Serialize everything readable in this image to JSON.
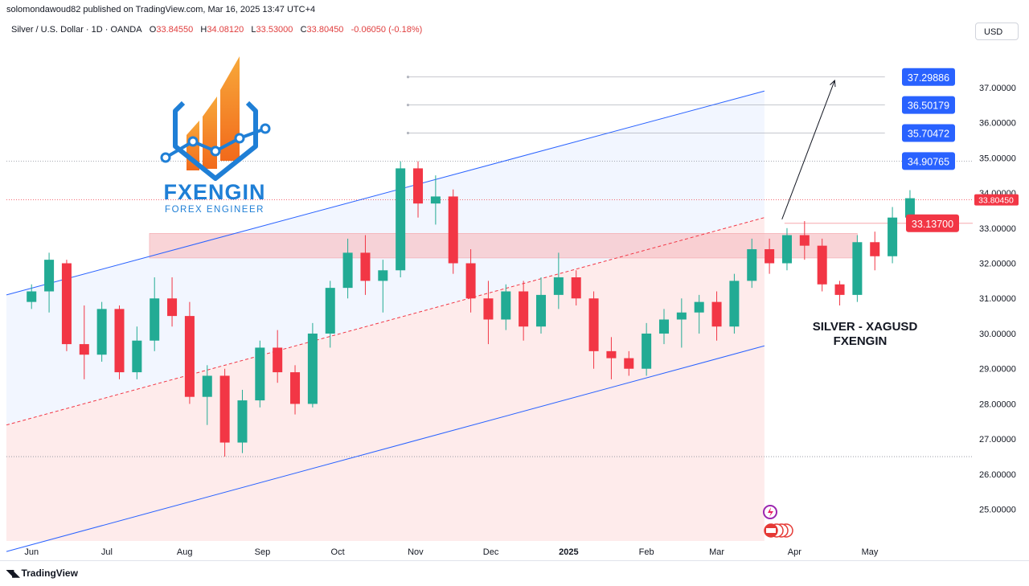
{
  "header": {
    "published": "solomondawoud82 published on TradingView.com, Mar 16, 2025 13:47 UTC+4"
  },
  "legend": {
    "symbol": "Silver / U.S. Dollar · 1D · OANDA",
    "o_label": "O",
    "o_value": "33.84550",
    "h_label": "H",
    "h_value": "34.08120",
    "l_label": "L",
    "l_value": "33.53000",
    "c_label": "C",
    "c_value": "33.80450",
    "change": "-0.06050 (-0.18%)"
  },
  "currency_button": "USD",
  "logo": {
    "name": "FXENGIN",
    "tagline": "FOREX ENGINEER"
  },
  "annotation": {
    "line1": "SILVER - XAGUSD",
    "line2": "FXENGIN"
  },
  "footer": {
    "brand": "TradingView",
    "icon": "tradingview-logo-icon"
  },
  "colors": {
    "up": "#22ab94",
    "down": "#f23645",
    "channel": "#2962ff",
    "target_label": "#2962ff",
    "current_label": "#f23645"
  },
  "chart_data": {
    "type": "candlestick",
    "symbol": "XAGUSD",
    "timeframe": "1D",
    "y_axis": {
      "ylim": [
        24.1,
        38.3
      ],
      "ticks": [
        "37.00000",
        "36.00000",
        "35.00000",
        "34.00000",
        "33.00000",
        "32.00000",
        "31.00000",
        "30.00000",
        "29.00000",
        "28.00000",
        "27.00000",
        "26.00000",
        "25.00000"
      ],
      "tick_values": [
        37,
        36,
        35,
        34,
        33,
        32,
        31,
        30,
        29,
        28,
        27,
        26,
        25
      ]
    },
    "x_axis": {
      "labels": [
        "Jun",
        "Jul",
        "Aug",
        "Sep",
        "Oct",
        "Nov",
        "Dec",
        "2025",
        "Feb",
        "Mar",
        "Apr",
        "May"
      ],
      "label_days": [
        0,
        30,
        61,
        92,
        122,
        153,
        183,
        214,
        245,
        273,
        304,
        334
      ],
      "xlim_days": [
        -10,
        375
      ]
    },
    "current_price": {
      "value": 33.8045,
      "label": "33.80450"
    },
    "level_labels": [
      {
        "value": 37.29886,
        "label": "37.29886"
      },
      {
        "value": 36.50179,
        "label": "36.50179"
      },
      {
        "value": 35.70472,
        "label": "35.70472"
      },
      {
        "value": 34.90765,
        "label": "34.90765"
      }
    ],
    "marked_level": {
      "value": 33.137,
      "label": "33.13700"
    },
    "horizontal_lines": [
      34.90765,
      26.5
    ],
    "support_zone": {
      "from": 32.15,
      "to": 32.85,
      "x_from_day": 47,
      "x_to_day": 329
    },
    "channel": {
      "upper": {
        "x": [
          -10,
          292
        ],
        "y": [
          31.1,
          36.9
        ]
      },
      "lower": {
        "x": [
          -10,
          292
        ],
        "y": [
          23.8,
          29.65
        ]
      },
      "mid": {
        "x": [
          -10,
          292
        ],
        "y": [
          27.4,
          33.3
        ]
      },
      "fill_end_day": 292
    },
    "projection_arrow": {
      "x": [
        299,
        320
      ],
      "y": [
        33.25,
        37.2
      ]
    },
    "candles": [
      {
        "d": 0,
        "o": 30.9,
        "h": 31.4,
        "l": 30.7,
        "c": 31.2
      },
      {
        "d": 7,
        "o": 31.2,
        "h": 32.3,
        "l": 30.6,
        "c": 32.1
      },
      {
        "d": 14,
        "o": 32.0,
        "h": 32.1,
        "l": 29.5,
        "c": 29.7
      },
      {
        "d": 21,
        "o": 29.7,
        "h": 30.8,
        "l": 28.7,
        "c": 29.4
      },
      {
        "d": 28,
        "o": 29.4,
        "h": 30.9,
        "l": 29.2,
        "c": 30.7
      },
      {
        "d": 35,
        "o": 30.7,
        "h": 30.8,
        "l": 28.7,
        "c": 28.9
      },
      {
        "d": 42,
        "o": 28.9,
        "h": 30.2,
        "l": 28.7,
        "c": 29.8
      },
      {
        "d": 49,
        "o": 29.8,
        "h": 31.6,
        "l": 29.5,
        "c": 31.0
      },
      {
        "d": 56,
        "o": 31.0,
        "h": 31.6,
        "l": 30.2,
        "c": 30.5
      },
      {
        "d": 63,
        "o": 30.5,
        "h": 30.9,
        "l": 28.0,
        "c": 28.2
      },
      {
        "d": 70,
        "o": 28.2,
        "h": 29.1,
        "l": 27.4,
        "c": 28.8
      },
      {
        "d": 77,
        "o": 28.8,
        "h": 29.0,
        "l": 26.5,
        "c": 26.9
      },
      {
        "d": 84,
        "o": 26.9,
        "h": 28.4,
        "l": 26.6,
        "c": 28.1
      },
      {
        "d": 91,
        "o": 28.1,
        "h": 29.8,
        "l": 27.9,
        "c": 29.6
      },
      {
        "d": 98,
        "o": 29.6,
        "h": 30.1,
        "l": 28.6,
        "c": 28.9
      },
      {
        "d": 105,
        "o": 28.9,
        "h": 29.1,
        "l": 27.7,
        "c": 28.0
      },
      {
        "d": 112,
        "o": 28.0,
        "h": 30.3,
        "l": 27.9,
        "c": 30.0
      },
      {
        "d": 119,
        "o": 30.0,
        "h": 31.5,
        "l": 29.6,
        "c": 31.3
      },
      {
        "d": 126,
        "o": 31.3,
        "h": 32.7,
        "l": 31.0,
        "c": 32.3
      },
      {
        "d": 133,
        "o": 32.3,
        "h": 32.8,
        "l": 31.1,
        "c": 31.5
      },
      {
        "d": 140,
        "o": 31.5,
        "h": 32.1,
        "l": 30.6,
        "c": 31.8
      },
      {
        "d": 147,
        "o": 31.8,
        "h": 34.9,
        "l": 31.6,
        "c": 34.7
      },
      {
        "d": 154,
        "o": 34.7,
        "h": 34.9,
        "l": 33.3,
        "c": 33.7
      },
      {
        "d": 161,
        "o": 33.7,
        "h": 34.5,
        "l": 33.1,
        "c": 33.9
      },
      {
        "d": 168,
        "o": 33.9,
        "h": 34.1,
        "l": 31.7,
        "c": 32.0
      },
      {
        "d": 175,
        "o": 32.0,
        "h": 32.4,
        "l": 30.6,
        "c": 31.0
      },
      {
        "d": 182,
        "o": 31.0,
        "h": 31.5,
        "l": 29.7,
        "c": 30.4
      },
      {
        "d": 189,
        "o": 30.4,
        "h": 31.4,
        "l": 30.1,
        "c": 31.2
      },
      {
        "d": 196,
        "o": 31.2,
        "h": 31.5,
        "l": 29.8,
        "c": 30.2
      },
      {
        "d": 203,
        "o": 30.2,
        "h": 31.6,
        "l": 30.0,
        "c": 31.1
      },
      {
        "d": 210,
        "o": 31.1,
        "h": 32.3,
        "l": 30.7,
        "c": 31.6
      },
      {
        "d": 217,
        "o": 31.6,
        "h": 31.8,
        "l": 30.8,
        "c": 31.0
      },
      {
        "d": 224,
        "o": 31.0,
        "h": 31.2,
        "l": 29.0,
        "c": 29.5
      },
      {
        "d": 231,
        "o": 29.5,
        "h": 29.9,
        "l": 28.7,
        "c": 29.3
      },
      {
        "d": 238,
        "o": 29.3,
        "h": 29.5,
        "l": 28.8,
        "c": 29.0
      },
      {
        "d": 245,
        "o": 29.0,
        "h": 30.3,
        "l": 28.8,
        "c": 30.0
      },
      {
        "d": 252,
        "o": 30.0,
        "h": 30.7,
        "l": 29.7,
        "c": 30.4
      },
      {
        "d": 259,
        "o": 30.4,
        "h": 31.0,
        "l": 29.6,
        "c": 30.6
      },
      {
        "d": 266,
        "o": 30.6,
        "h": 31.1,
        "l": 30.0,
        "c": 30.9
      },
      {
        "d": 273,
        "o": 30.9,
        "h": 31.2,
        "l": 29.8,
        "c": 30.2
      },
      {
        "d": 280,
        "o": 30.2,
        "h": 31.7,
        "l": 30.0,
        "c": 31.5
      },
      {
        "d": 287,
        "o": 31.5,
        "h": 32.7,
        "l": 31.3,
        "c": 32.4
      },
      {
        "d": 294,
        "o": 32.4,
        "h": 32.7,
        "l": 31.7,
        "c": 32.0
      },
      {
        "d": 301,
        "o": 32.0,
        "h": 33.0,
        "l": 31.8,
        "c": 32.8
      },
      {
        "d": 308,
        "o": 32.8,
        "h": 33.2,
        "l": 32.1,
        "c": 32.5
      },
      {
        "d": 315,
        "o": 32.5,
        "h": 32.7,
        "l": 31.2,
        "c": 31.4
      },
      {
        "d": 322,
        "o": 31.4,
        "h": 31.5,
        "l": 30.8,
        "c": 31.1
      },
      {
        "d": 329,
        "o": 31.1,
        "h": 32.8,
        "l": 30.9,
        "c": 32.6
      },
      {
        "d": 336,
        "o": 32.6,
        "h": 32.9,
        "l": 31.8,
        "c": 32.2
      },
      {
        "d": 343,
        "o": 32.2,
        "h": 33.6,
        "l": 32.0,
        "c": 33.3
      },
      {
        "d": 350,
        "o": 33.3,
        "h": 34.08,
        "l": 33.1,
        "c": 33.85
      }
    ]
  }
}
